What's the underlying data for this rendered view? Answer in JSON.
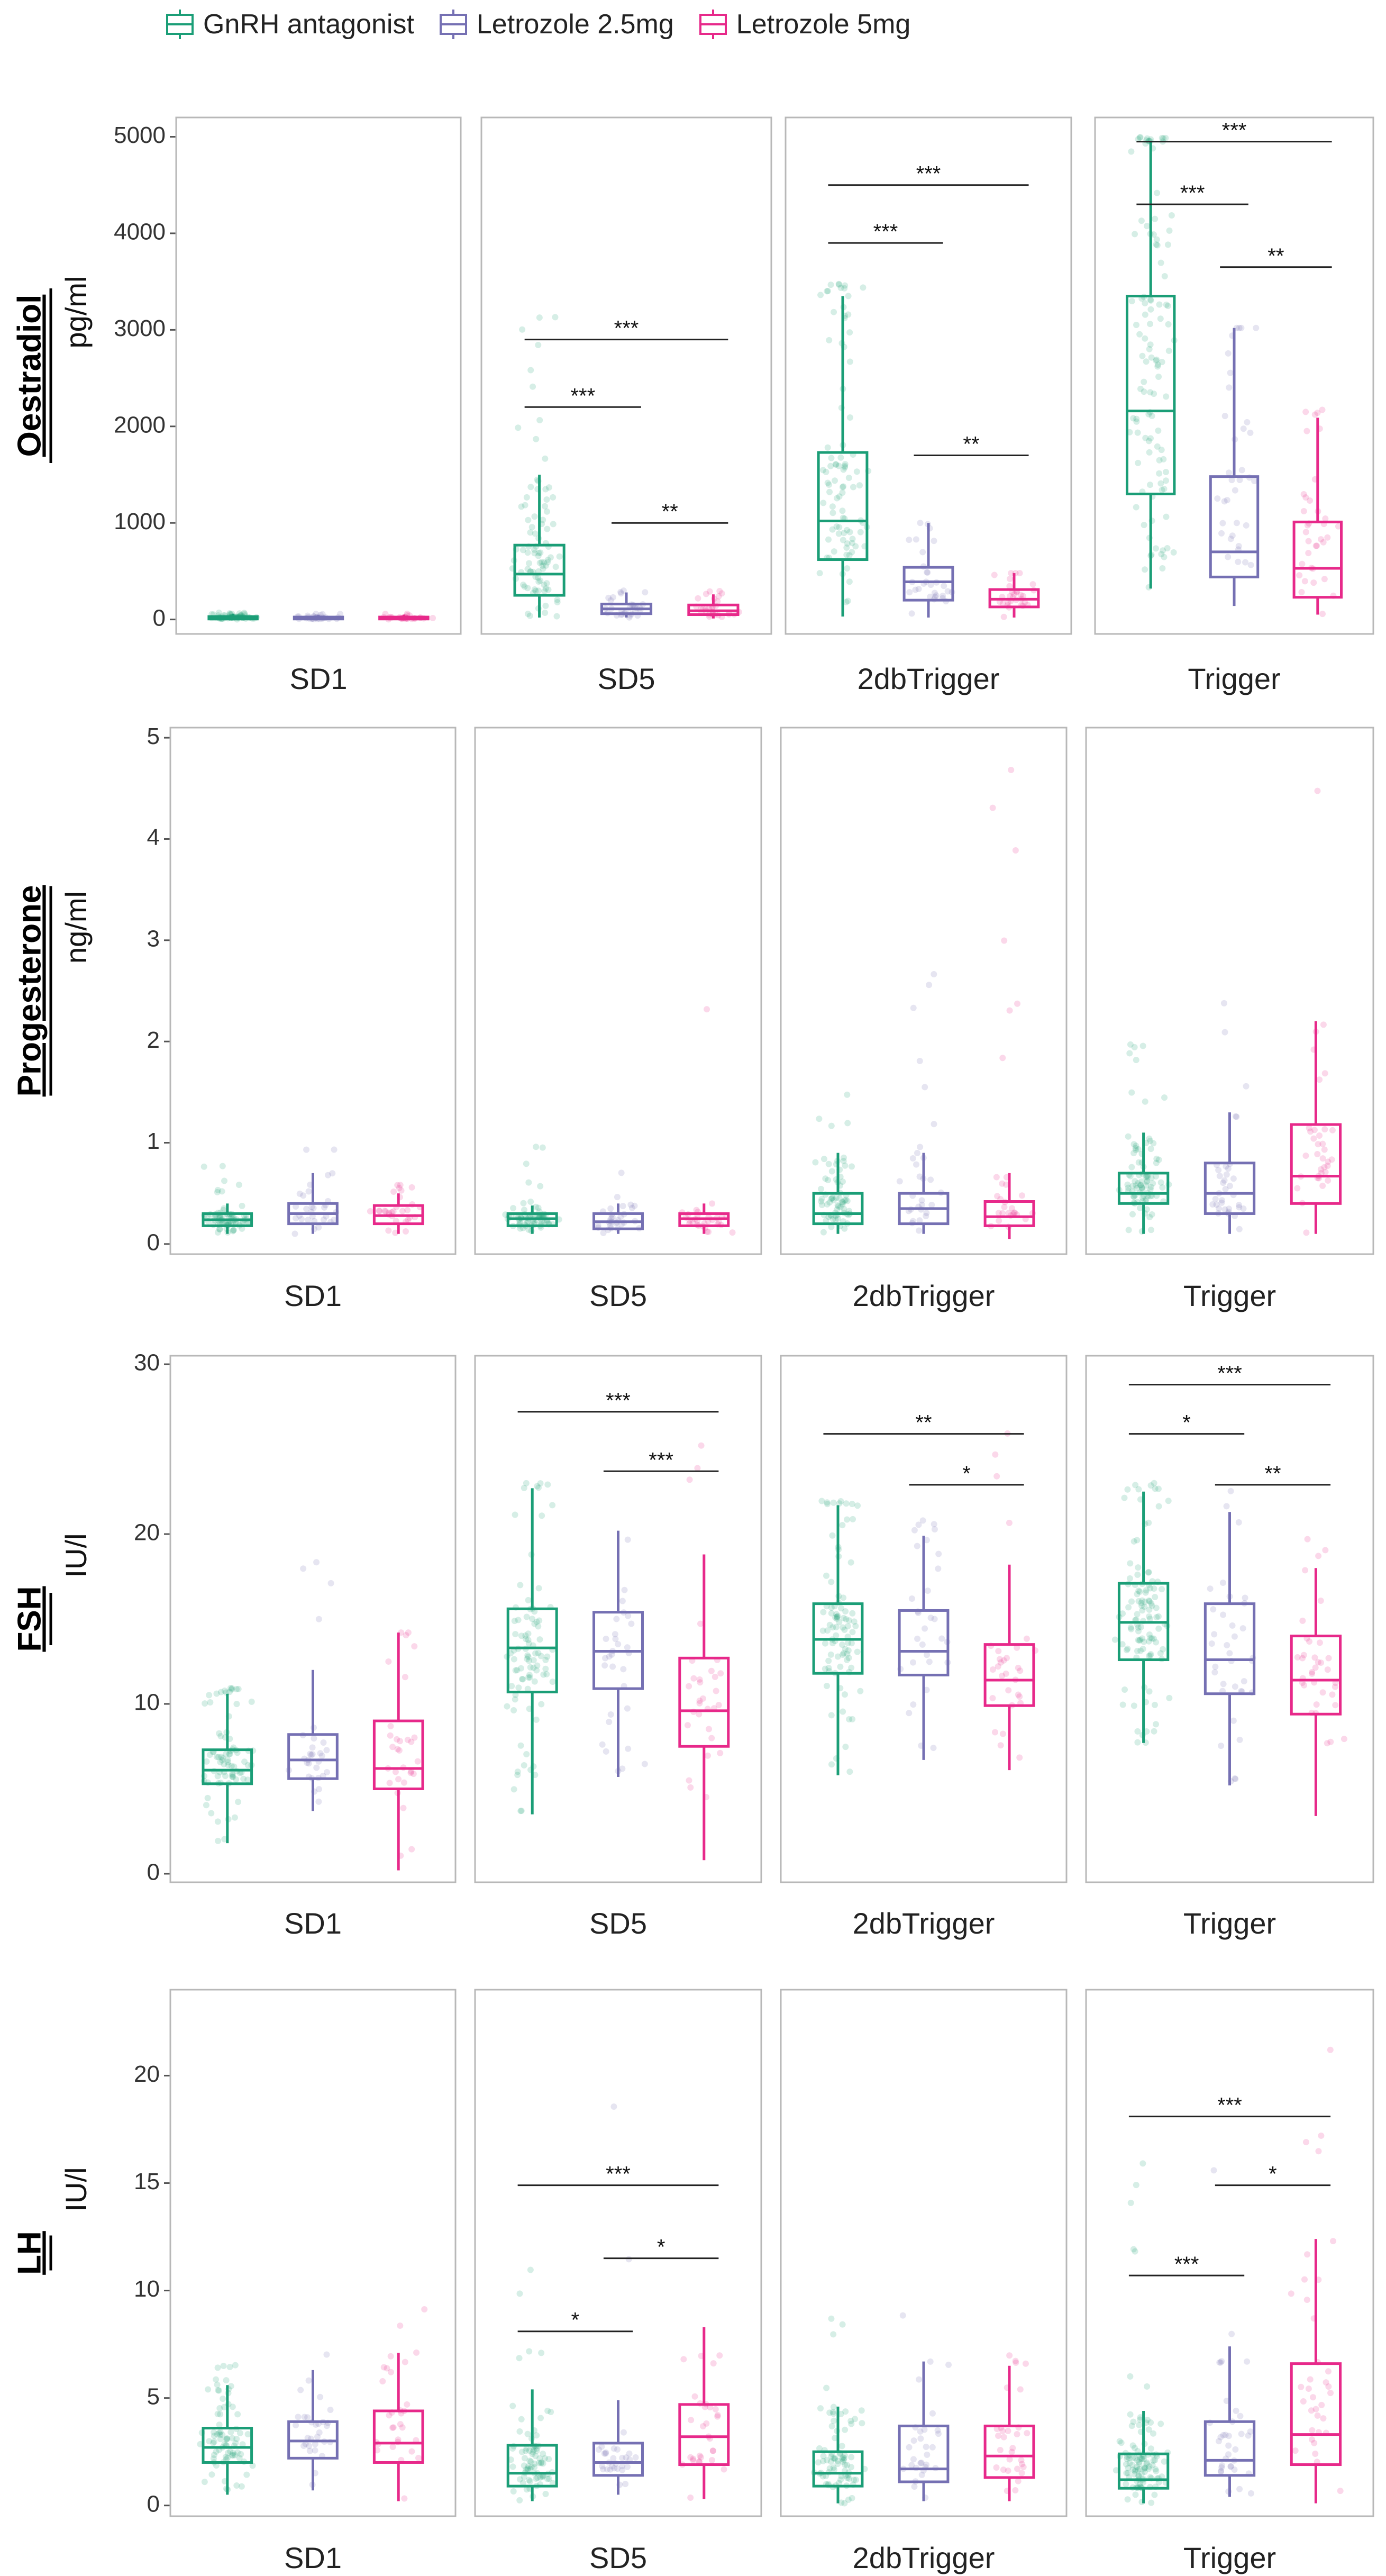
{
  "chart_data": {
    "type": "box",
    "legend": {
      "position": "top-left",
      "entries": [
        {
          "name": "GnRH antagonist",
          "color": "#1B9E77"
        },
        {
          "name": "Letrozole 2.5mg",
          "color": "#7570B3"
        },
        {
          "name": "Letrozole 5mg",
          "color": "#E7298A"
        }
      ]
    },
    "facets": [
      "SD1",
      "SD5",
      "2dbTrigger",
      "Trigger"
    ],
    "rows": [
      {
        "hormone": "Oestradiol",
        "unit": "pg/ml",
        "ylim": [
          -150,
          5200
        ],
        "yticks": [
          0,
          1000,
          2000,
          3000,
          4000,
          5000
        ],
        "ytick_labels": [
          "0",
          "1000",
          "2000",
          "3000",
          "4000",
          "5000"
        ],
        "facets": [
          {
            "name": "SD1",
            "groups": [
              {
                "q1": 5,
                "median": 15,
                "q3": 30,
                "lower": 0,
                "upper": 60,
                "n": 60,
                "spread": 70
              },
              {
                "q1": 5,
                "median": 15,
                "q3": 25,
                "lower": 0,
                "upper": 45,
                "n": 30,
                "spread": 60
              },
              {
                "q1": 5,
                "median": 12,
                "q3": 25,
                "lower": 0,
                "upper": 50,
                "n": 30,
                "spread": 60
              }
            ],
            "sig": []
          },
          {
            "name": "SD5",
            "groups": [
              {
                "q1": 250,
                "median": 470,
                "q3": 770,
                "lower": 20,
                "upper": 1500,
                "n": 90,
                "spread": 3200
              },
              {
                "q1": 60,
                "median": 110,
                "q3": 160,
                "lower": 20,
                "upper": 280,
                "n": 30,
                "spread": 300
              },
              {
                "q1": 50,
                "median": 90,
                "q3": 150,
                "lower": 10,
                "upper": 260,
                "n": 30,
                "spread": 300
              }
            ],
            "sig": [
              {
                "from": 0,
                "to": 1,
                "label": "***",
                "y": 2200
              },
              {
                "from": 1,
                "to": 2,
                "label": "**",
                "y": 1000
              },
              {
                "from": 0,
                "to": 2,
                "label": "***",
                "y": 2900
              }
            ]
          },
          {
            "name": "2dbTrigger",
            "groups": [
              {
                "q1": 620,
                "median": 1020,
                "q3": 1730,
                "lower": 30,
                "upper": 3350,
                "n": 90,
                "spread": 3500
              },
              {
                "q1": 200,
                "median": 390,
                "q3": 540,
                "lower": 20,
                "upper": 1000,
                "n": 30,
                "spread": 900
              },
              {
                "q1": 130,
                "median": 210,
                "q3": 310,
                "lower": 20,
                "upper": 480,
                "n": 30,
                "spread": 480
              }
            ],
            "sig": [
              {
                "from": 0,
                "to": 1,
                "label": "***",
                "y": 3900
              },
              {
                "from": 1,
                "to": 2,
                "label": "**",
                "y": 1700
              },
              {
                "from": 0,
                "to": 2,
                "label": "***",
                "y": 4500
              }
            ]
          },
          {
            "name": "Trigger",
            "groups": [
              {
                "q1": 1300,
                "median": 2160,
                "q3": 3350,
                "lower": 320,
                "upper": 4950,
                "n": 110,
                "spread": 5000
              },
              {
                "q1": 440,
                "median": 700,
                "q3": 1480,
                "lower": 140,
                "upper": 3020,
                "n": 35,
                "spread": 3000
              },
              {
                "q1": 230,
                "median": 530,
                "q3": 1010,
                "lower": 50,
                "upper": 2090,
                "n": 35,
                "spread": 2200
              }
            ],
            "sig": [
              {
                "from": 0,
                "to": 1,
                "label": "***",
                "y": 4300
              },
              {
                "from": 1,
                "to": 2,
                "label": "**",
                "y": 3650
              },
              {
                "from": 0,
                "to": 2,
                "label": "***",
                "y": 4950
              }
            ]
          }
        ]
      },
      {
        "hormone": "Progesterone",
        "unit": "ng/ml",
        "ylim": [
          -0.1,
          5.1
        ],
        "yticks": [
          0,
          1,
          2,
          3,
          4,
          5
        ],
        "ytick_labels": [
          "0",
          "1",
          "2",
          "3",
          "4",
          "5"
        ],
        "facets": [
          {
            "name": "SD1",
            "groups": [
              {
                "q1": 0.18,
                "median": 0.24,
                "q3": 0.3,
                "lower": 0.1,
                "upper": 0.4,
                "n": 70,
                "spread": 1.0
              },
              {
                "q1": 0.2,
                "median": 0.3,
                "q3": 0.4,
                "lower": 0.1,
                "upper": 0.7,
                "n": 30,
                "spread": 1.1
              },
              {
                "q1": 0.2,
                "median": 0.28,
                "q3": 0.38,
                "lower": 0.1,
                "upper": 0.5,
                "n": 30,
                "spread": 0.6
              }
            ],
            "sig": []
          },
          {
            "name": "SD5",
            "groups": [
              {
                "q1": 0.18,
                "median": 0.25,
                "q3": 0.3,
                "lower": 0.1,
                "upper": 0.38,
                "n": 70,
                "spread": 1.0
              },
              {
                "q1": 0.15,
                "median": 0.22,
                "q3": 0.3,
                "lower": 0.1,
                "upper": 0.4,
                "n": 30,
                "spread": 1.0
              },
              {
                "q1": 0.18,
                "median": 0.25,
                "q3": 0.3,
                "lower": 0.1,
                "upper": 0.4,
                "n": 30,
                "spread": 4.5
              }
            ],
            "sig": []
          },
          {
            "name": "2dbTrigger",
            "groups": [
              {
                "q1": 0.2,
                "median": 0.3,
                "q3": 0.5,
                "lower": 0.1,
                "upper": 0.9,
                "n": 70,
                "spread": 1.5
              },
              {
                "q1": 0.2,
                "median": 0.35,
                "q3": 0.5,
                "lower": 0.1,
                "upper": 0.9,
                "n": 30,
                "spread": 2.9
              },
              {
                "q1": 0.18,
                "median": 0.27,
                "q3": 0.42,
                "lower": 0.05,
                "upper": 0.7,
                "n": 30,
                "spread": 5.0
              }
            ],
            "sig": []
          },
          {
            "name": "Trigger",
            "groups": [
              {
                "q1": 0.4,
                "median": 0.5,
                "q3": 0.7,
                "lower": 0.1,
                "upper": 1.1,
                "n": 90,
                "spread": 2.5
              },
              {
                "q1": 0.3,
                "median": 0.5,
                "q3": 0.8,
                "lower": 0.1,
                "upper": 1.3,
                "n": 35,
                "spread": 2.4
              },
              {
                "q1": 0.4,
                "median": 0.67,
                "q3": 1.18,
                "lower": 0.1,
                "upper": 2.2,
                "n": 35,
                "spread": 4.9
              }
            ],
            "sig": []
          }
        ]
      },
      {
        "hormone": "FSH",
        "unit": "IU/l",
        "ylim": [
          -0.5,
          30.5
        ],
        "yticks": [
          0,
          10,
          20,
          30
        ],
        "ytick_labels": [
          "0",
          "10",
          "20",
          "30"
        ],
        "facets": [
          {
            "name": "SD1",
            "groups": [
              {
                "q1": 5.3,
                "median": 6.1,
                "q3": 7.3,
                "lower": 1.8,
                "upper": 10.6,
                "n": 80,
                "spread": 11
              },
              {
                "q1": 5.6,
                "median": 6.7,
                "q3": 8.2,
                "lower": 3.7,
                "upper": 12,
                "n": 30,
                "spread": 19.5
              },
              {
                "q1": 5.0,
                "median": 6.2,
                "q3": 9.0,
                "lower": 0.2,
                "upper": 14.2,
                "n": 30,
                "spread": 14
              }
            ],
            "sig": []
          },
          {
            "name": "SD5",
            "groups": [
              {
                "q1": 10.7,
                "median": 13.3,
                "q3": 15.6,
                "lower": 3.5,
                "upper": 22.7,
                "n": 90,
                "spread": 23
              },
              {
                "q1": 10.9,
                "median": 13.1,
                "q3": 15.4,
                "lower": 5.7,
                "upper": 20.2,
                "n": 30,
                "spread": 21
              },
              {
                "q1": 7.5,
                "median": 9.6,
                "q3": 12.7,
                "lower": 0.8,
                "upper": 18.8,
                "n": 30,
                "spread": 27
              }
            ],
            "sig": [
              {
                "from": 1,
                "to": 2,
                "label": "***",
                "y": 23.7
              },
              {
                "from": 0,
                "to": 2,
                "label": "***",
                "y": 27.2
              }
            ]
          },
          {
            "name": "2dbTrigger",
            "groups": [
              {
                "q1": 11.8,
                "median": 13.8,
                "q3": 15.9,
                "lower": 5.8,
                "upper": 21.7,
                "n": 90,
                "spread": 22
              },
              {
                "q1": 11.7,
                "median": 13.1,
                "q3": 15.5,
                "lower": 6.7,
                "upper": 19.9,
                "n": 30,
                "spread": 21
              },
              {
                "q1": 9.9,
                "median": 11.4,
                "q3": 13.5,
                "lower": 6.1,
                "upper": 18.2,
                "n": 30,
                "spread": 29
              }
            ],
            "sig": [
              {
                "from": 1,
                "to": 2,
                "label": "*",
                "y": 22.9
              },
              {
                "from": 0,
                "to": 2,
                "label": "**",
                "y": 25.9
              }
            ]
          },
          {
            "name": "Trigger",
            "groups": [
              {
                "q1": 12.6,
                "median": 14.8,
                "q3": 17.1,
                "lower": 7.7,
                "upper": 22.5,
                "n": 110,
                "spread": 23
              },
              {
                "q1": 10.6,
                "median": 12.6,
                "q3": 15.9,
                "lower": 5.2,
                "upper": 21.3,
                "n": 35,
                "spread": 23
              },
              {
                "q1": 9.4,
                "median": 11.4,
                "q3": 14.0,
                "lower": 3.4,
                "upper": 18.0,
                "n": 35,
                "spread": 24
              }
            ],
            "sig": [
              {
                "from": 0,
                "to": 1,
                "label": "*",
                "y": 25.9
              },
              {
                "from": 1,
                "to": 2,
                "label": "**",
                "y": 22.9
              },
              {
                "from": 0,
                "to": 2,
                "label": "***",
                "y": 28.8
              }
            ]
          }
        ]
      },
      {
        "hormone": "LH",
        "unit": "IU/l",
        "ylim": [
          -0.5,
          24
        ],
        "yticks": [
          0,
          5,
          10,
          15,
          20
        ],
        "ytick_labels": [
          "0",
          "5",
          "10",
          "15",
          "20"
        ],
        "facets": [
          {
            "name": "SD1",
            "groups": [
              {
                "q1": 2.0,
                "median": 2.7,
                "q3": 3.6,
                "lower": 0.5,
                "upper": 5.6,
                "n": 80,
                "spread": 7
              },
              {
                "q1": 2.2,
                "median": 3.0,
                "q3": 3.9,
                "lower": 0.7,
                "upper": 6.3,
                "n": 30,
                "spread": 7.5
              },
              {
                "q1": 2.0,
                "median": 2.9,
                "q3": 4.4,
                "lower": 0.2,
                "upper": 7.1,
                "n": 30,
                "spread": 10.5
              }
            ],
            "sig": []
          },
          {
            "name": "SD5",
            "groups": [
              {
                "q1": 0.9,
                "median": 1.5,
                "q3": 2.8,
                "lower": 0.2,
                "upper": 5.4,
                "n": 80,
                "spread": 13
              },
              {
                "q1": 1.4,
                "median": 2.0,
                "q3": 2.9,
                "lower": 0.5,
                "upper": 4.9,
                "n": 30,
                "spread": 21.5
              },
              {
                "q1": 1.9,
                "median": 3.2,
                "q3": 4.7,
                "lower": 0.3,
                "upper": 8.3,
                "n": 30,
                "spread": 11
              }
            ],
            "sig": [
              {
                "from": 0,
                "to": 1,
                "label": "*",
                "y": 8.1
              },
              {
                "from": 1,
                "to": 2,
                "label": "*",
                "y": 11.5
              },
              {
                "from": 0,
                "to": 2,
                "label": "***",
                "y": 14.9
              }
            ]
          },
          {
            "name": "2dbTrigger",
            "groups": [
              {
                "q1": 0.9,
                "median": 1.5,
                "q3": 2.5,
                "lower": 0.1,
                "upper": 4.6,
                "n": 80,
                "spread": 9
              },
              {
                "q1": 1.1,
                "median": 1.7,
                "q3": 3.7,
                "lower": 0.2,
                "upper": 6.7,
                "n": 30,
                "spread": 11
              },
              {
                "q1": 1.3,
                "median": 2.3,
                "q3": 3.7,
                "lower": 0.2,
                "upper": 6.5,
                "n": 30,
                "spread": 7
              }
            ],
            "sig": []
          },
          {
            "name": "Trigger",
            "groups": [
              {
                "q1": 0.8,
                "median": 1.2,
                "q3": 2.4,
                "lower": 0.1,
                "upper": 4.4,
                "n": 110,
                "spread": 17.5
              },
              {
                "q1": 1.4,
                "median": 2.1,
                "q3": 3.9,
                "lower": 0.4,
                "upper": 7.4,
                "n": 35,
                "spread": 19
              },
              {
                "q1": 1.9,
                "median": 3.3,
                "q3": 6.6,
                "lower": 0.1,
                "upper": 12.4,
                "n": 35,
                "spread": 22
              }
            ],
            "sig": [
              {
                "from": 0,
                "to": 1,
                "label": "***",
                "y": 10.7
              },
              {
                "from": 1,
                "to": 2,
                "label": "*",
                "y": 14.9
              },
              {
                "from": 0,
                "to": 2,
                "label": "***",
                "y": 18.1
              }
            ]
          }
        ]
      }
    ]
  }
}
